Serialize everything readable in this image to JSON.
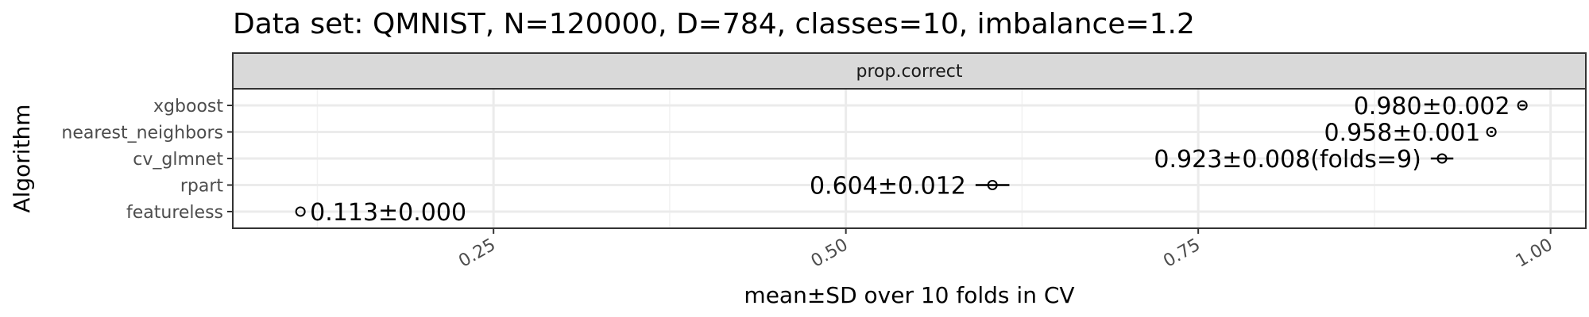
{
  "chart_data": {
    "type": "scatter",
    "title": "Data set: QMNIST, N=120000, D=784, classes=10, imbalance=1.2",
    "facet": "prop.correct",
    "xlabel": "mean±SD over 10 folds in CV",
    "ylabel": "Algorithm",
    "xlim": [
      0.065,
      1.025
    ],
    "x_ticks": [
      0.25,
      0.5,
      0.75,
      1.0
    ],
    "x_tick_labels": [
      "0.25",
      "0.50",
      "0.75",
      "1.00"
    ],
    "categories": [
      "xgboost",
      "nearest_neighbors",
      "cv_glmnet",
      "rpart",
      "featureless"
    ],
    "series": [
      {
        "mean": [
          0.98,
          0.958,
          0.923,
          0.604,
          0.113
        ],
        "sd": [
          0.002,
          0.001,
          0.008,
          0.012,
          0.0
        ],
        "labels": [
          "0.980±0.002",
          "0.958±0.001",
          "0.923±0.008(folds=9)",
          "0.604±0.012",
          "0.113±0.000"
        ]
      }
    ],
    "grid": true,
    "legend": "none"
  }
}
